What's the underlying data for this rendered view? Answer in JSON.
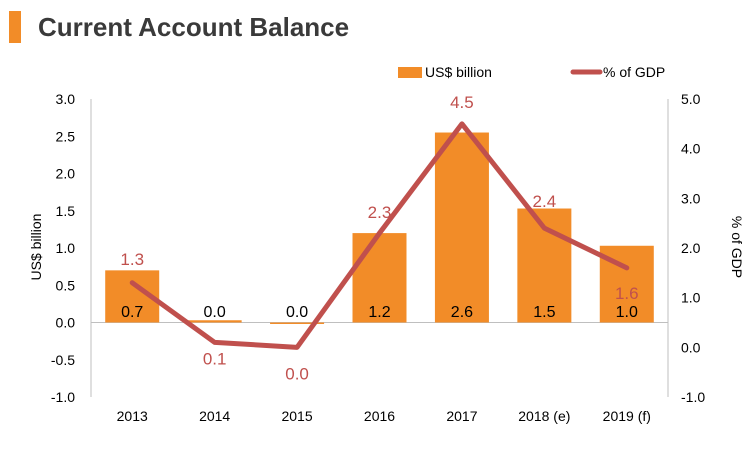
{
  "title": "Current Account Balance",
  "chart_data": {
    "type": "bar",
    "title": "Current Account Balance",
    "categories": [
      "2013",
      "2014",
      "2015",
      "2016",
      "2017",
      "2018 (e)",
      "2019 (f)"
    ],
    "series": [
      {
        "name": "US$ billion",
        "type": "bar",
        "axis": "left",
        "values": [
          0.7,
          0.03,
          -0.02,
          1.2,
          2.55,
          1.53,
          1.03
        ],
        "labels": [
          "0.7",
          "0.0",
          "0.0",
          "1.2",
          "2.6",
          "1.5",
          "1.0"
        ],
        "color": "#f28c28"
      },
      {
        "name": "% of GDP",
        "type": "line",
        "axis": "right",
        "values": [
          1.3,
          0.1,
          0.0,
          2.3,
          4.5,
          2.4,
          1.6
        ],
        "labels": [
          "1.3",
          "0.1",
          "0.0",
          "2.3",
          "4.5",
          "2.4",
          "1.6"
        ],
        "color": "#c0504d"
      }
    ],
    "ylabel": "US$ billion",
    "y2label": "% of GDP",
    "ylim": [
      -1.0,
      3.0
    ],
    "y2lim": [
      -1.0,
      5.0
    ],
    "yticks": [
      "3.0",
      "2.5",
      "2.0",
      "1.5",
      "1.0",
      "0.5",
      "0.0",
      "-0.5",
      "-1.0"
    ],
    "y2ticks": [
      "5.0",
      "4.0",
      "3.0",
      "2.0",
      "1.0",
      "0.0",
      "-1.0"
    ],
    "legend": "top-right",
    "grid": false
  }
}
